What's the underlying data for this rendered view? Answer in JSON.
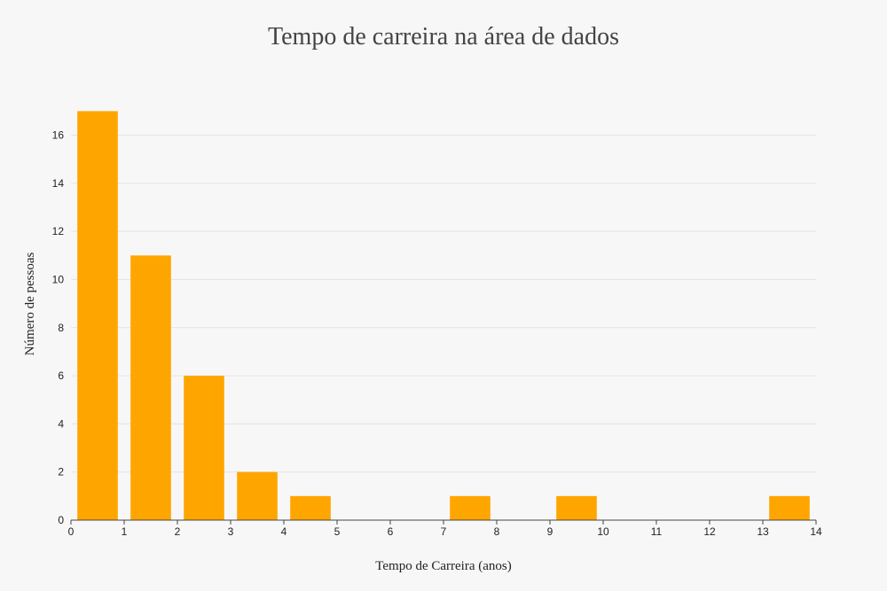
{
  "chart_data": {
    "type": "bar",
    "title": "Tempo de carreira na área de dados",
    "xlabel": "Tempo de Carreira (anos)",
    "ylabel": "Número de pessoas",
    "x_bins": [
      {
        "start": 0,
        "end": 1,
        "value": 17
      },
      {
        "start": 1,
        "end": 2,
        "value": 11
      },
      {
        "start": 2,
        "end": 3,
        "value": 6
      },
      {
        "start": 3,
        "end": 4,
        "value": 2
      },
      {
        "start": 4,
        "end": 5,
        "value": 1
      },
      {
        "start": 7,
        "end": 8,
        "value": 1
      },
      {
        "start": 9,
        "end": 10,
        "value": 1
      },
      {
        "start": 13,
        "end": 14,
        "value": 1
      }
    ],
    "xlim": [
      0,
      14
    ],
    "ylim": [
      0,
      17.2
    ],
    "xticks": [
      "0",
      "1",
      "2",
      "3",
      "4",
      "5",
      "6",
      "7",
      "8",
      "9",
      "10",
      "11",
      "12",
      "13",
      "14"
    ],
    "yticks": [
      "0",
      "2",
      "4",
      "6",
      "8",
      "10",
      "12",
      "14",
      "16"
    ],
    "grid": true,
    "colors": {
      "bar": "#ffa500",
      "background": "#f7f7f7"
    }
  }
}
